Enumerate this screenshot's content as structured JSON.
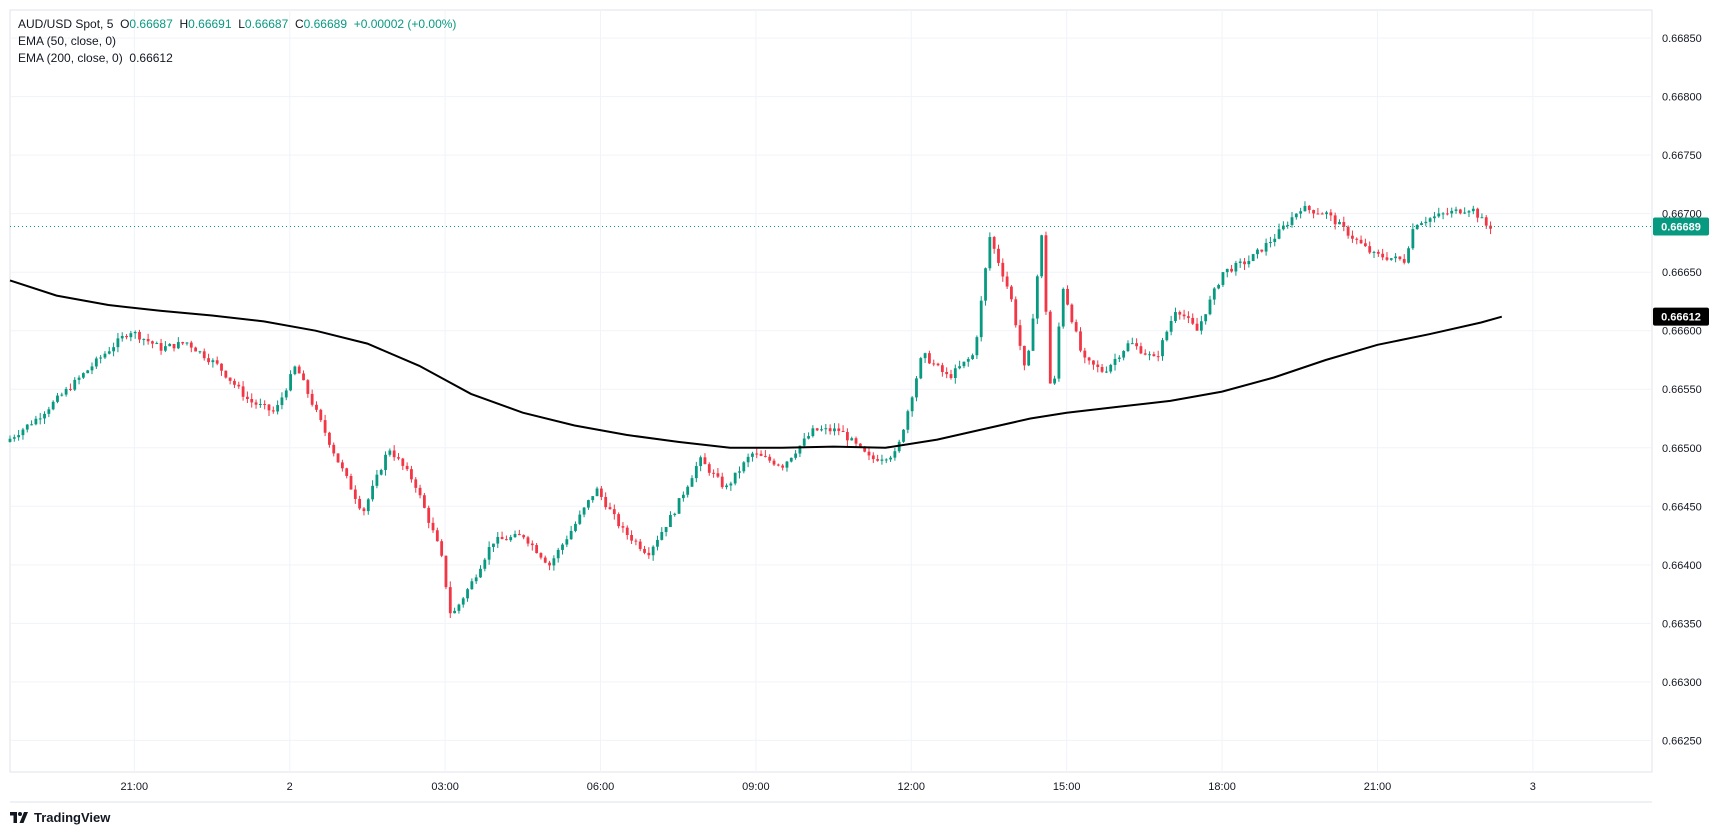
{
  "legend": {
    "symbol": "AUD/USD Spot",
    "interval": "5",
    "open_label": "O",
    "open": "0.66687",
    "high_label": "H",
    "high": "0.66691",
    "low_label": "L",
    "low": "0.66687",
    "close_label": "C",
    "close": "0.66689",
    "change": "+0.00002 (+0.00%)",
    "ema50": "EMA (50, close, 0)",
    "ema200": "EMA (200, close, 0)",
    "ema200_value": "0.66612"
  },
  "branding": {
    "name": "TradingView"
  },
  "colors": {
    "up": "#089981",
    "down": "#f23645",
    "ema": "#000000",
    "grid": "#f0f3fa",
    "axis_text": "#131722"
  },
  "chart_data": {
    "type": "candlestick",
    "title": "",
    "y_ticks": [
      "0.66850",
      "0.66800",
      "0.66750",
      "0.66700",
      "0.66650",
      "0.66600",
      "0.66550",
      "0.66500",
      "0.66450",
      "0.66400",
      "0.66350",
      "0.66300",
      "0.66250"
    ],
    "ylim": [
      0.66223,
      0.66874
    ],
    "x_ticks": [
      {
        "hour": 21,
        "label": "21:00"
      },
      {
        "hour": 24,
        "label": "2"
      },
      {
        "hour": 27,
        "label": "03:00"
      },
      {
        "hour": 30,
        "label": "06:00"
      },
      {
        "hour": 33,
        "label": "09:00"
      },
      {
        "hour": 36,
        "label": "12:00"
      },
      {
        "hour": 39,
        "label": "15:00"
      },
      {
        "hour": 42,
        "label": "18:00"
      },
      {
        "hour": 45,
        "label": "21:00"
      },
      {
        "hour": 48,
        "label": "3"
      }
    ],
    "xlim_hours": [
      18.6,
      50.3
    ],
    "last_price": "0.66689",
    "ema200_label": "0.66612",
    "anchors": [
      {
        "h": 18.6,
        "p": 0.66505
      },
      {
        "h": 19.2,
        "p": 0.66525
      },
      {
        "h": 19.8,
        "p": 0.6655
      },
      {
        "h": 20.5,
        "p": 0.6658
      },
      {
        "h": 21.0,
        "p": 0.666
      },
      {
        "h": 21.6,
        "p": 0.66585
      },
      {
        "h": 22.1,
        "p": 0.6659
      },
      {
        "h": 22.7,
        "p": 0.6657
      },
      {
        "h": 23.3,
        "p": 0.6654
      },
      {
        "h": 23.8,
        "p": 0.6653
      },
      {
        "h": 24.2,
        "p": 0.6657
      },
      {
        "h": 24.6,
        "p": 0.6653
      },
      {
        "h": 25.0,
        "p": 0.6649
      },
      {
        "h": 25.5,
        "p": 0.66445
      },
      {
        "h": 26.0,
        "p": 0.665
      },
      {
        "h": 26.5,
        "p": 0.6647
      },
      {
        "h": 27.0,
        "p": 0.6641
      },
      {
        "h": 27.2,
        "p": 0.66355
      },
      {
        "h": 27.6,
        "p": 0.66385
      },
      {
        "h": 28.0,
        "p": 0.6642
      },
      {
        "h": 28.6,
        "p": 0.66425
      },
      {
        "h": 29.1,
        "p": 0.664
      },
      {
        "h": 29.6,
        "p": 0.66435
      },
      {
        "h": 30.0,
        "p": 0.66465
      },
      {
        "h": 30.5,
        "p": 0.6643
      },
      {
        "h": 31.0,
        "p": 0.6641
      },
      {
        "h": 31.5,
        "p": 0.66445
      },
      {
        "h": 32.0,
        "p": 0.6649
      },
      {
        "h": 32.5,
        "p": 0.66465
      },
      {
        "h": 33.0,
        "p": 0.66495
      },
      {
        "h": 33.6,
        "p": 0.66485
      },
      {
        "h": 34.2,
        "p": 0.66515
      },
      {
        "h": 34.7,
        "p": 0.66515
      },
      {
        "h": 35.3,
        "p": 0.6649
      },
      {
        "h": 35.8,
        "p": 0.66495
      },
      {
        "h": 36.3,
        "p": 0.6658
      },
      {
        "h": 36.8,
        "p": 0.6656
      },
      {
        "h": 37.3,
        "p": 0.6658
      },
      {
        "h": 37.6,
        "p": 0.6668
      },
      {
        "h": 38.0,
        "p": 0.6663
      },
      {
        "h": 38.3,
        "p": 0.6656
      },
      {
        "h": 38.6,
        "p": 0.6668
      },
      {
        "h": 38.8,
        "p": 0.6653
      },
      {
        "h": 39.0,
        "p": 0.6664
      },
      {
        "h": 39.4,
        "p": 0.66575
      },
      {
        "h": 39.8,
        "p": 0.66565
      },
      {
        "h": 40.3,
        "p": 0.6659
      },
      {
        "h": 40.8,
        "p": 0.66575
      },
      {
        "h": 41.2,
        "p": 0.6662
      },
      {
        "h": 41.6,
        "p": 0.666
      },
      {
        "h": 42.1,
        "p": 0.6665
      },
      {
        "h": 42.6,
        "p": 0.6666
      },
      {
        "h": 43.1,
        "p": 0.6668
      },
      {
        "h": 43.6,
        "p": 0.66705
      },
      {
        "h": 44.1,
        "p": 0.667
      },
      {
        "h": 44.6,
        "p": 0.6668
      },
      {
        "h": 45.0,
        "p": 0.66665
      },
      {
        "h": 45.6,
        "p": 0.6666
      },
      {
        "h": 45.8,
        "p": 0.66692
      },
      {
        "h": 46.4,
        "p": 0.667
      },
      {
        "h": 46.9,
        "p": 0.66705
      },
      {
        "h": 47.2,
        "p": 0.66689
      }
    ],
    "ema200_series": [
      {
        "h": 18.6,
        "p": 0.66643
      },
      {
        "h": 19.5,
        "p": 0.6663
      },
      {
        "h": 20.5,
        "p": 0.66622
      },
      {
        "h": 21.5,
        "p": 0.66617
      },
      {
        "h": 22.5,
        "p": 0.66613
      },
      {
        "h": 23.5,
        "p": 0.66608
      },
      {
        "h": 24.5,
        "p": 0.666
      },
      {
        "h": 25.5,
        "p": 0.66589
      },
      {
        "h": 26.5,
        "p": 0.6657
      },
      {
        "h": 27.5,
        "p": 0.66546
      },
      {
        "h": 28.5,
        "p": 0.6653
      },
      {
        "h": 29.5,
        "p": 0.66519
      },
      {
        "h": 30.5,
        "p": 0.66511
      },
      {
        "h": 31.5,
        "p": 0.66505
      },
      {
        "h": 32.5,
        "p": 0.665
      },
      {
        "h": 33.5,
        "p": 0.665
      },
      {
        "h": 34.5,
        "p": 0.66501
      },
      {
        "h": 35.5,
        "p": 0.665
      },
      {
        "h": 36.5,
        "p": 0.66507
      },
      {
        "h": 37.5,
        "p": 0.66517
      },
      {
        "h": 38.3,
        "p": 0.66525
      },
      {
        "h": 39.0,
        "p": 0.6653
      },
      {
        "h": 40.0,
        "p": 0.66535
      },
      {
        "h": 41.0,
        "p": 0.6654
      },
      {
        "h": 42.0,
        "p": 0.66548
      },
      {
        "h": 43.0,
        "p": 0.6656
      },
      {
        "h": 44.0,
        "p": 0.66575
      },
      {
        "h": 45.0,
        "p": 0.66588
      },
      {
        "h": 46.0,
        "p": 0.66597
      },
      {
        "h": 47.0,
        "p": 0.66607
      },
      {
        "h": 47.4,
        "p": 0.66612
      }
    ]
  }
}
